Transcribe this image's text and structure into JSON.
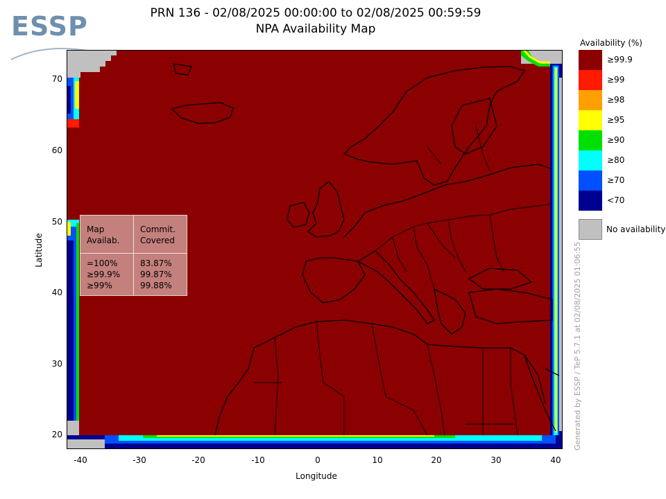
{
  "header": {
    "title_line1": "PRN 136 - 02/08/2025 00:00:00 to 02/08/2025 00:59:59",
    "title_line2": "NPA Availability Map"
  },
  "logo": {
    "text": "ESSP"
  },
  "axes": {
    "xlabel": "Longitude",
    "ylabel": "Latitude",
    "xticks": [
      "-40",
      "-30",
      "-20",
      "-10",
      "0",
      "10",
      "20",
      "30",
      "40"
    ],
    "yticks": [
      "70",
      "60",
      "50",
      "40",
      "30",
      "20"
    ],
    "x_range": [
      -42,
      42
    ],
    "y_range": [
      18,
      74
    ]
  },
  "legend": {
    "title": "Availability (%)",
    "items": [
      {
        "label": "≥99.9",
        "color": "#8b0000"
      },
      {
        "label": "≥99",
        "color": "#ff1a00"
      },
      {
        "label": "≥98",
        "color": "#ff9f00"
      },
      {
        "label": "≥95",
        "color": "#ffff00"
      },
      {
        "label": "≥90",
        "color": "#00e000"
      },
      {
        "label": "≥80",
        "color": "#00ffff"
      },
      {
        "label": "≥70",
        "color": "#0050ff"
      },
      {
        "label": "<70",
        "color": "#000090"
      }
    ],
    "no_availability": {
      "label": "No availability",
      "color": "#c0c0c0"
    }
  },
  "stats_box": {
    "header_col1": "Map\nAvailab.",
    "header_col2": "Commit.\nCovered",
    "rows_col1": "=100%\n≥99.9%\n≥99%",
    "rows_col2": "83.87%\n99.87%\n99.88%"
  },
  "footer": {
    "generated_by": "Generated by ESSP / TeP 5.7.1 at 02/08/2025 01:06:55"
  },
  "colors": {
    "map_fill": "#8b0000",
    "border": "#000000"
  }
}
